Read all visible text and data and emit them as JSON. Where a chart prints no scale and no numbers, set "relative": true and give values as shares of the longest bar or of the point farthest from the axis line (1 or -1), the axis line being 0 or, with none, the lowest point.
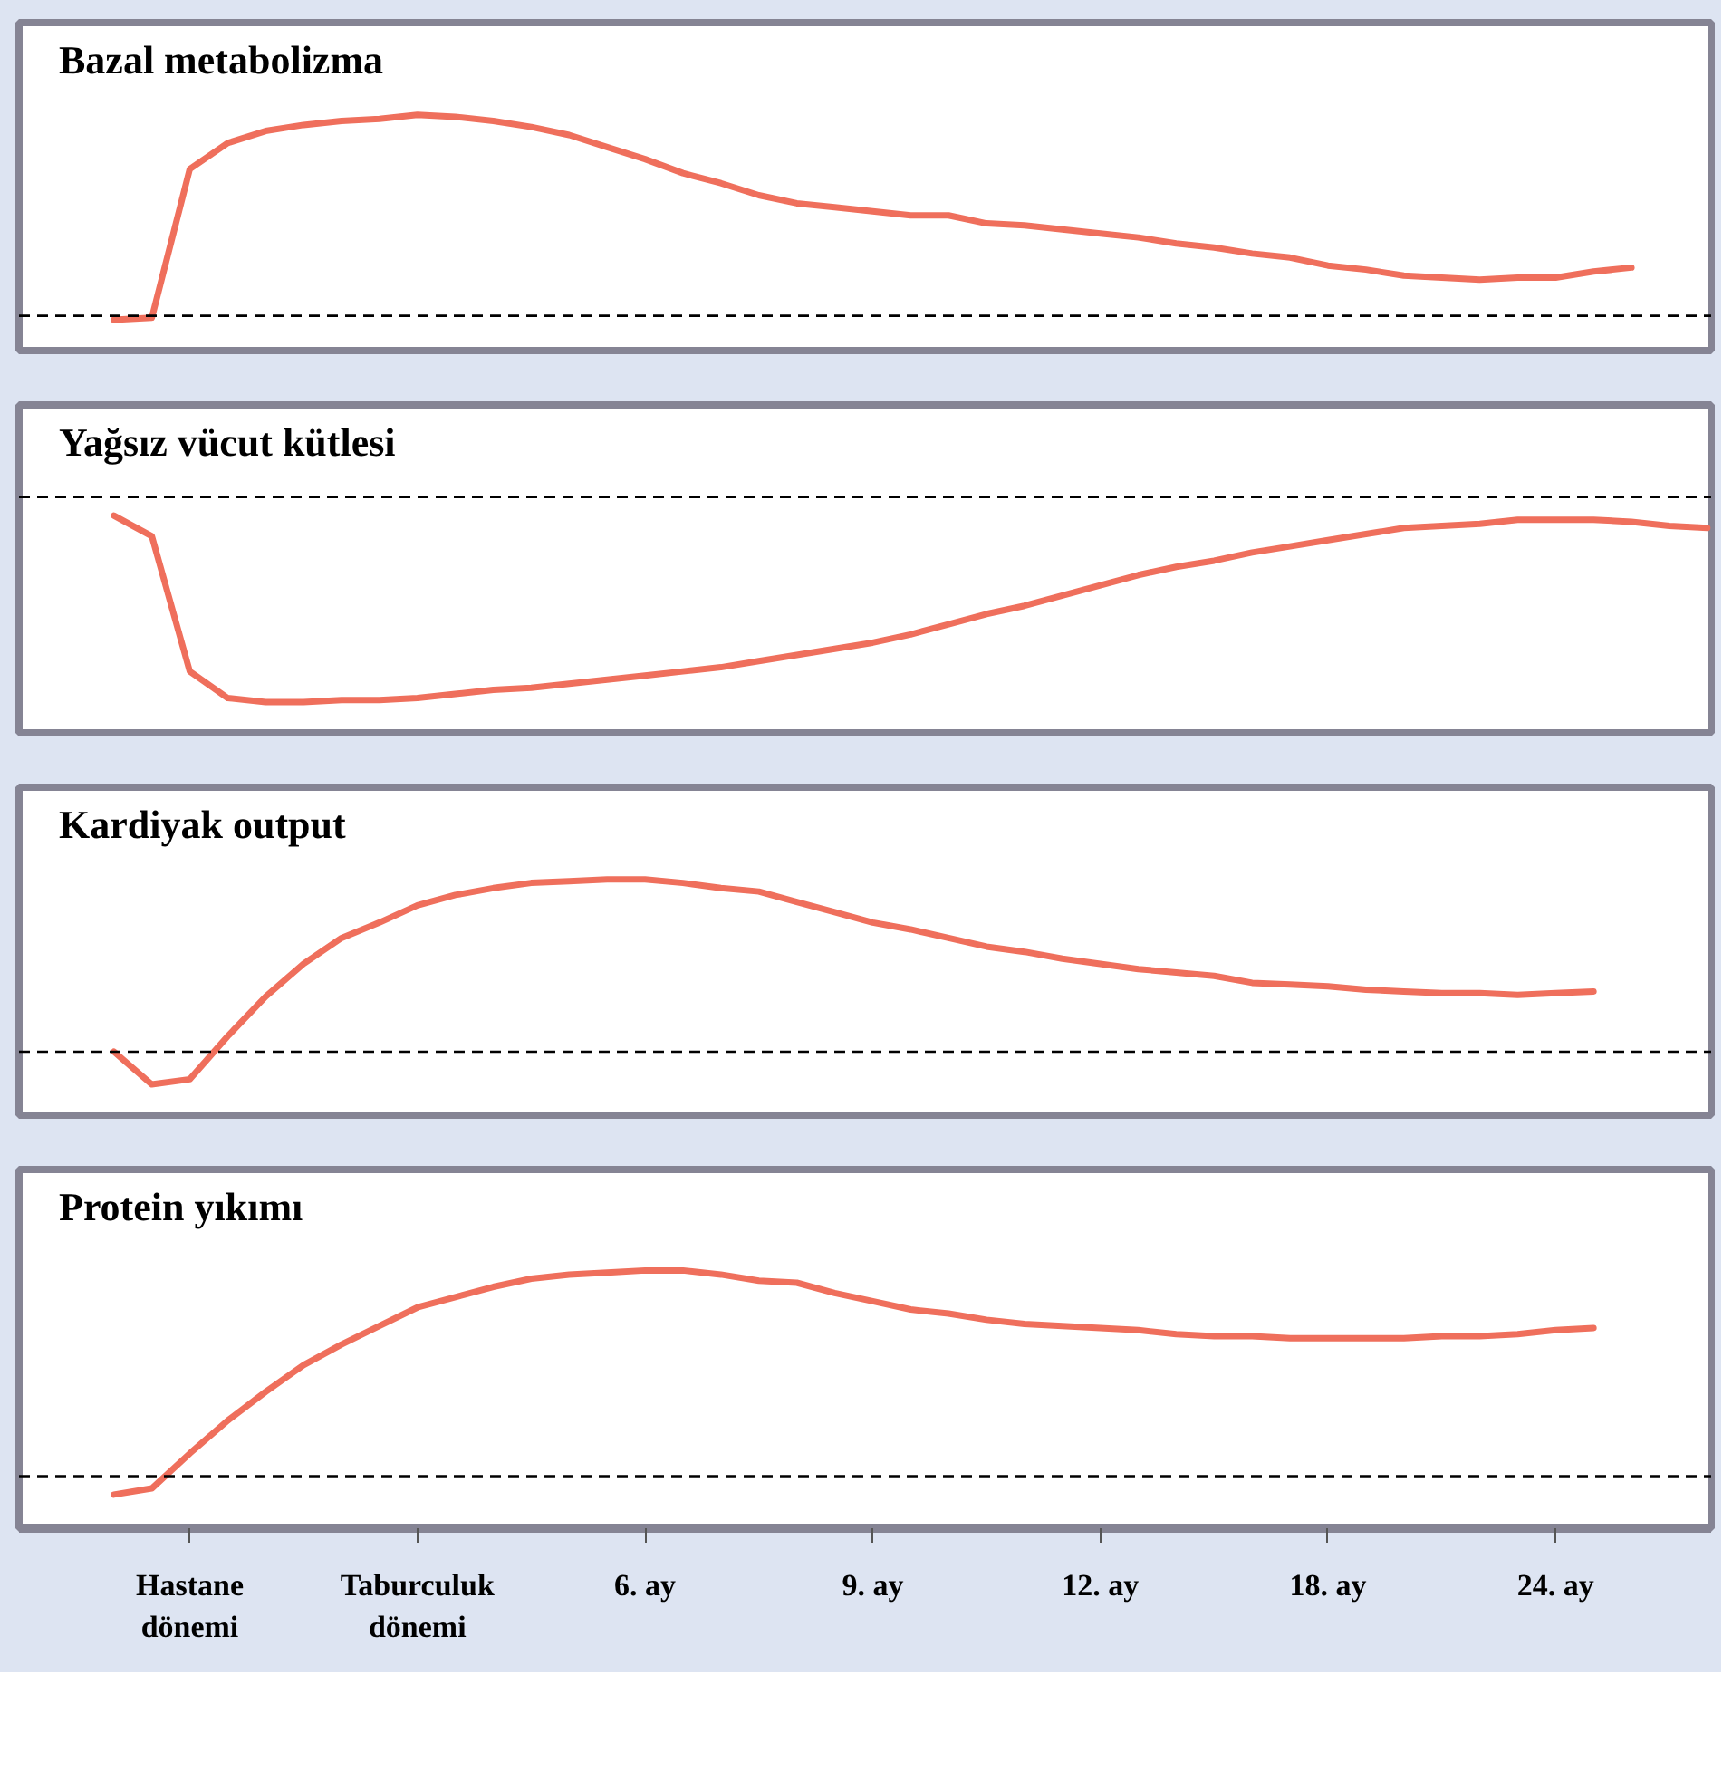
{
  "chart_data": [
    {
      "type": "line",
      "title": "Bazal metabolizma",
      "relative": true,
      "color": "#ef6f5c",
      "line_style": "solid",
      "marker": "none",
      "grid": false,
      "tick_labels": false,
      "categories": [
        null,
        null,
        null,
        null,
        null,
        null,
        null,
        null,
        null,
        null,
        null,
        null,
        null,
        null,
        null,
        null,
        null,
        null,
        null,
        null,
        null,
        null,
        null,
        null,
        null,
        null,
        null,
        null,
        null,
        null,
        null,
        null,
        null,
        null,
        null,
        null,
        null,
        null,
        null,
        null,
        null
      ],
      "values": [
        -0.02,
        -0.01,
        0.73,
        0.86,
        0.92,
        0.95,
        0.97,
        0.98,
        1.0,
        0.99,
        0.97,
        0.94,
        0.9,
        0.84,
        0.78,
        0.71,
        0.66,
        0.6,
        0.56,
        0.54,
        0.52,
        0.5,
        0.5,
        0.46,
        0.45,
        0.43,
        0.41,
        0.39,
        0.36,
        0.34,
        0.31,
        0.29,
        0.25,
        0.23,
        0.2,
        0.19,
        0.18,
        0.19,
        0.19,
        0.22,
        0.24
      ],
      "ref_lines": [
        {
          "axis": "y",
          "value": 0,
          "color": "#000000",
          "line_style": "dashed"
        }
      ]
    },
    {
      "type": "line",
      "title": "Yağsız vücut kütlesi",
      "relative": true,
      "color": "#ef6f5c",
      "line_style": "solid",
      "marker": "none",
      "grid": false,
      "tick_labels": false,
      "categories": [
        null,
        null,
        null,
        null,
        null,
        null,
        null,
        null,
        null,
        null,
        null,
        null,
        null,
        null,
        null,
        null,
        null,
        null,
        null,
        null,
        null,
        null,
        null,
        null,
        null,
        null,
        null,
        null,
        null,
        null,
        null,
        null,
        null,
        null,
        null,
        null,
        null,
        null,
        null,
        null,
        null,
        null,
        null
      ],
      "values": [
        -0.09,
        -0.19,
        -0.85,
        -0.98,
        -1.0,
        -1.0,
        -0.99,
        -0.99,
        -0.98,
        -0.96,
        -0.94,
        -0.93,
        -0.91,
        -0.89,
        -0.87,
        -0.85,
        -0.83,
        -0.8,
        -0.77,
        -0.74,
        -0.71,
        -0.67,
        -0.62,
        -0.57,
        -0.53,
        -0.48,
        -0.43,
        -0.38,
        -0.34,
        -0.31,
        -0.27,
        -0.24,
        -0.21,
        -0.18,
        -0.15,
        -0.14,
        -0.13,
        -0.11,
        -0.11,
        -0.11,
        -0.12,
        -0.14,
        -0.15
      ],
      "ref_lines": [
        {
          "axis": "y",
          "value": 0,
          "color": "#000000",
          "line_style": "dashed"
        }
      ]
    },
    {
      "type": "line",
      "title": "Kardiyak output",
      "relative": true,
      "color": "#ef6f5c",
      "line_style": "solid",
      "marker": "none",
      "grid": false,
      "tick_labels": false,
      "categories": [
        null,
        null,
        null,
        null,
        null,
        null,
        null,
        null,
        null,
        null,
        null,
        null,
        null,
        null,
        null,
        null,
        null,
        null,
        null,
        null,
        null,
        null,
        null,
        null,
        null,
        null,
        null,
        null,
        null,
        null,
        null,
        null,
        null,
        null,
        null,
        null,
        null,
        null,
        null,
        null
      ],
      "values": [
        0,
        -0.19,
        -0.16,
        0.09,
        0.32,
        0.51,
        0.66,
        0.75,
        0.85,
        0.91,
        0.95,
        0.98,
        0.99,
        1.0,
        1.0,
        0.98,
        0.95,
        0.93,
        0.87,
        0.81,
        0.75,
        0.71,
        0.66,
        0.61,
        0.58,
        0.54,
        0.51,
        0.48,
        0.46,
        0.44,
        0.4,
        0.39,
        0.38,
        0.36,
        0.35,
        0.34,
        0.34,
        0.33,
        0.34,
        0.35
      ],
      "ref_lines": [
        {
          "axis": "y",
          "value": 0,
          "color": "#000000",
          "line_style": "dashed"
        }
      ]
    },
    {
      "type": "line",
      "title": "Protein yıkımı",
      "relative": true,
      "color": "#ef6f5c",
      "line_style": "solid",
      "marker": "none",
      "grid": false,
      "tick_labels": "x",
      "categories": [
        null,
        null,
        "Hastane\ndönemi",
        null,
        null,
        null,
        null,
        null,
        "Taburculuk\ndönemi",
        null,
        null,
        null,
        null,
        null,
        "6. ay",
        null,
        null,
        null,
        null,
        null,
        "9. ay",
        null,
        null,
        null,
        null,
        null,
        "12. ay",
        null,
        null,
        null,
        null,
        null,
        "18. ay",
        null,
        null,
        null,
        null,
        null,
        "24. ay",
        null
      ],
      "values": [
        -0.09,
        -0.06,
        0.11,
        0.27,
        0.41,
        0.54,
        0.64,
        0.73,
        0.82,
        0.87,
        0.92,
        0.96,
        0.98,
        0.99,
        1.0,
        1.0,
        0.98,
        0.95,
        0.94,
        0.89,
        0.85,
        0.81,
        0.79,
        0.76,
        0.74,
        0.73,
        0.72,
        0.71,
        0.69,
        0.68,
        0.68,
        0.67,
        0.67,
        0.67,
        0.67,
        0.68,
        0.68,
        0.69,
        0.71,
        0.72
      ],
      "ref_lines": [
        {
          "axis": "y",
          "value": 0,
          "color": "#000000",
          "line_style": "dashed"
        }
      ]
    }
  ]
}
